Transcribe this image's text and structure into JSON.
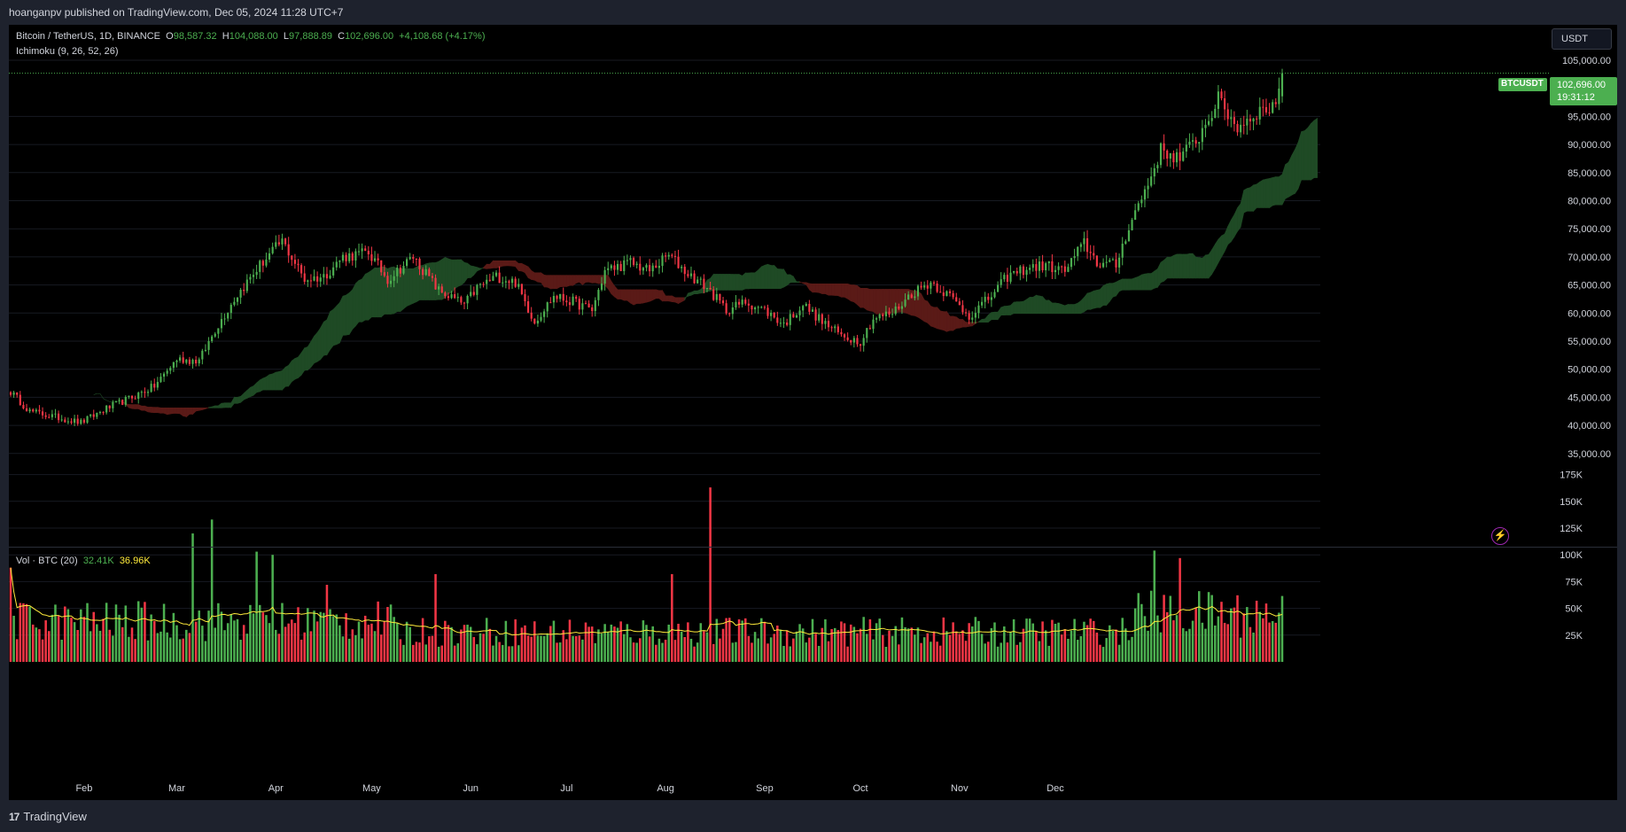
{
  "header": {
    "publisher": "hoanganpv published on TradingView.com, Dec 05, 2024 11:28 UTC+7"
  },
  "legend": {
    "symbol": "Bitcoin / TetherUS, 1D, BINANCE",
    "open_label": "O",
    "open_value": "98,587.32",
    "high_label": "H",
    "high_value": "104,088.00",
    "low_label": "L",
    "low_value": "97,888.89",
    "close_label": "C",
    "close_value": "102,696.00",
    "change": "+4,108.68 (+4.17%)",
    "indicator": "Ichimoku (9, 26, 52, 26)"
  },
  "volume_legend": {
    "label": "Vol · BTC (20)",
    "volume": "32.41K",
    "ma": "36.96K"
  },
  "currency_button": "USDT",
  "price_tag": {
    "symbol": "BTCUSDT",
    "price": "102,696.00",
    "countdown": "19:31:12"
  },
  "footer": {
    "brand": "TradingView"
  },
  "colors": {
    "up": "#4caf50",
    "down": "#f23645",
    "cloud_bull": "#1f4a25",
    "cloud_bear": "#5a1a17",
    "ma": "#ffeb3b",
    "background": "#000000"
  },
  "icons": {
    "flash": "lightning-icon",
    "logo": "tradingview-logo-icon"
  },
  "chart_data": {
    "type": "candlestick",
    "symbol": "BTCUSDT",
    "interval": "1D",
    "price_axis": {
      "ticks": [
        "35,000.00",
        "40,000.00",
        "45,000.00",
        "50,000.00",
        "55,000.00",
        "60,000.00",
        "65,000.00",
        "70,000.00",
        "75,000.00",
        "80,000.00",
        "85,000.00",
        "90,000.00",
        "95,000.00",
        "105,000.00"
      ],
      "range": [
        33000,
        108000
      ]
    },
    "volume_axis": {
      "ticks": [
        "25K",
        "50K",
        "75K",
        "100K",
        "125K",
        "150K",
        "175K"
      ],
      "range": [
        0,
        175000
      ]
    },
    "x_ticks": [
      "Feb",
      "Mar",
      "Apr",
      "May",
      "Jun",
      "Jul",
      "Aug",
      "Sep",
      "Oct",
      "Nov",
      "Dec"
    ],
    "price_anchors": [
      {
        "day": 0,
        "close": 46000
      },
      {
        "day": 6,
        "close": 42500
      },
      {
        "day": 22,
        "close": 40500
      },
      {
        "day": 30,
        "close": 43000
      },
      {
        "day": 38,
        "close": 45000
      },
      {
        "day": 45,
        "close": 47000
      },
      {
        "day": 52,
        "close": 51800
      },
      {
        "day": 59,
        "close": 51500
      },
      {
        "day": 64,
        "close": 57000
      },
      {
        "day": 70,
        "close": 62500
      },
      {
        "day": 78,
        "close": 68500
      },
      {
        "day": 85,
        "close": 72800
      },
      {
        "day": 92,
        "close": 66000
      },
      {
        "day": 98,
        "close": 66500
      },
      {
        "day": 104,
        "close": 70000
      },
      {
        "day": 112,
        "close": 70800
      },
      {
        "day": 118,
        "close": 66000
      },
      {
        "day": 126,
        "close": 70000
      },
      {
        "day": 134,
        "close": 64000
      },
      {
        "day": 142,
        "close": 61500
      },
      {
        "day": 146,
        "close": 64500
      },
      {
        "day": 152,
        "close": 66500
      },
      {
        "day": 158,
        "close": 65500
      },
      {
        "day": 164,
        "close": 58500
      },
      {
        "day": 170,
        "close": 63000
      },
      {
        "day": 176,
        "close": 62000
      },
      {
        "day": 182,
        "close": 60500
      },
      {
        "day": 186,
        "close": 67500
      },
      {
        "day": 194,
        "close": 69000
      },
      {
        "day": 200,
        "close": 67500
      },
      {
        "day": 206,
        "close": 70300
      },
      {
        "day": 212,
        "close": 67000
      },
      {
        "day": 218,
        "close": 64500
      },
      {
        "day": 224,
        "close": 60500
      },
      {
        "day": 230,
        "close": 62000
      },
      {
        "day": 236,
        "close": 60500
      },
      {
        "day": 242,
        "close": 58000
      },
      {
        "day": 248,
        "close": 61500
      },
      {
        "day": 254,
        "close": 58500
      },
      {
        "day": 260,
        "close": 56000
      },
      {
        "day": 266,
        "close": 55000
      },
      {
        "day": 270,
        "close": 59000
      },
      {
        "day": 276,
        "close": 60000
      },
      {
        "day": 282,
        "close": 63500
      },
      {
        "day": 288,
        "close": 65500
      },
      {
        "day": 294,
        "close": 63000
      },
      {
        "day": 300,
        "close": 59500
      },
      {
        "day": 306,
        "close": 62500
      },
      {
        "day": 312,
        "close": 66500
      },
      {
        "day": 318,
        "close": 68000
      },
      {
        "day": 324,
        "close": 68500
      },
      {
        "day": 330,
        "close": 67500
      },
      {
        "day": 336,
        "close": 72500
      },
      {
        "day": 340,
        "close": 69000
      },
      {
        "day": 346,
        "close": 68500
      },
      {
        "day": 350,
        "close": 75500
      },
      {
        "day": 356,
        "close": 83000
      },
      {
        "day": 360,
        "close": 89000
      },
      {
        "day": 366,
        "close": 87500
      },
      {
        "day": 372,
        "close": 91500
      },
      {
        "day": 378,
        "close": 98000
      },
      {
        "day": 384,
        "close": 93000
      },
      {
        "day": 390,
        "close": 95800
      },
      {
        "day": 394,
        "close": 96500
      },
      {
        "day": 397,
        "close": 98600
      },
      {
        "day": 398,
        "close": 102696
      }
    ],
    "volume_spikes": [
      {
        "day": 0,
        "volume": 88000
      },
      {
        "day": 57,
        "volume": 120000
      },
      {
        "day": 63,
        "volume": 133000
      },
      {
        "day": 77,
        "volume": 103000
      },
      {
        "day": 82,
        "volume": 100000
      },
      {
        "day": 99,
        "volume": 72000
      },
      {
        "day": 133,
        "volume": 82000
      },
      {
        "day": 207,
        "volume": 82000
      },
      {
        "day": 219,
        "volume": 163000
      },
      {
        "day": 358,
        "volume": 104000
      },
      {
        "day": 366,
        "volume": 97000
      }
    ]
  }
}
